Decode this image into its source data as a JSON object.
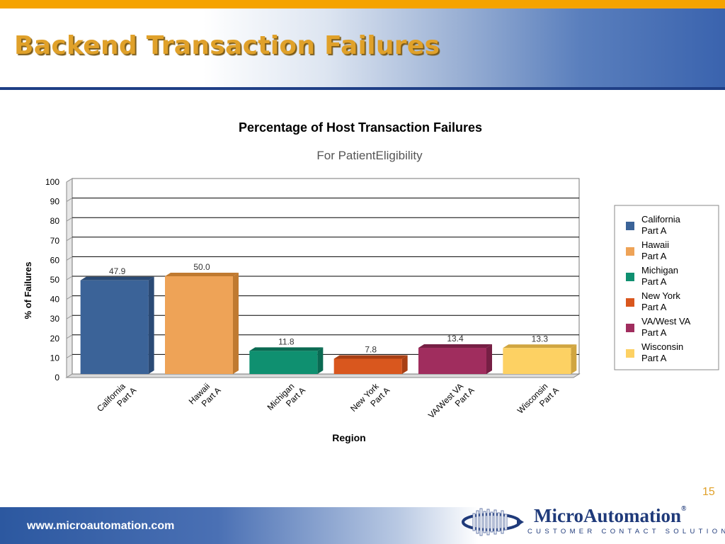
{
  "slide": {
    "title": "Backend Transaction Failures",
    "page_number": "15",
    "footer_url": "www.microautomation.com"
  },
  "logo": {
    "name": "MicroAutomation",
    "registered_mark": "®",
    "tagline": "CUSTOMER CONTACT SOLUTIONS"
  },
  "colors": {
    "accent_orange": "#f5a300",
    "title_gold": "#e0a12a",
    "brand_blue": "#1f3a7a"
  },
  "chart_data": {
    "type": "bar",
    "title": "Percentage of Host Transaction Failures",
    "subtitle": "For PatientEligibility",
    "xlabel": "Region",
    "ylabel": "% of Failures",
    "ylim": [
      0,
      100
    ],
    "yticks": [
      0,
      10,
      20,
      30,
      40,
      50,
      60,
      70,
      80,
      90,
      100
    ],
    "grid": true,
    "legend_position": "right",
    "categories": [
      [
        "California",
        "Part A"
      ],
      [
        "Hawaii",
        "Part A"
      ],
      [
        "Michigan",
        "Part A"
      ],
      [
        "New York",
        "Part A"
      ],
      [
        "VA/West VA",
        "Part A"
      ],
      [
        "Wisconsin",
        "Part A"
      ]
    ],
    "values": [
      47.9,
      50.0,
      11.8,
      7.8,
      13.4,
      13.3
    ],
    "value_labels": [
      "47.9",
      "50.0",
      "11.8",
      "7.8",
      "13.4",
      "13.3"
    ],
    "colors": [
      "#3b6398",
      "#eea357",
      "#0f9070",
      "#d9571e",
      "#a02d5e",
      "#fdd163"
    ],
    "dark_colors": [
      "#2a4a75",
      "#c07a30",
      "#0a6a52",
      "#a83f14",
      "#761f44",
      "#d0a540"
    ]
  }
}
